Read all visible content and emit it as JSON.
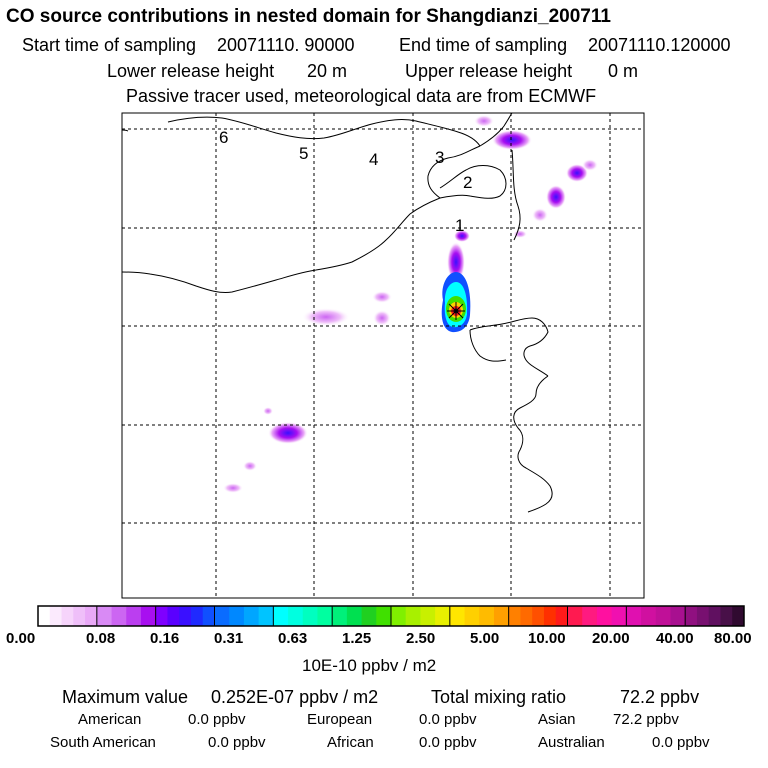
{
  "header": {
    "title": "CO  source contributions in nested domain for Shangdianzi_200711",
    "start_label": "Start time of sampling",
    "start_value": "20071110. 90000",
    "end_label": "End time of sampling",
    "end_value": "20071110.120000",
    "lower_label": "Lower release height",
    "lower_value": "20 m",
    "upper_label": "Upper release height",
    "upper_value": "0 m",
    "note": "Passive tracer used, meteorological data are from ECMWF"
  },
  "map": {
    "region_labels": [
      "1",
      "2",
      "3",
      "4",
      "5",
      "6"
    ],
    "colors": {
      "coast": "#000000",
      "grid": "#000000",
      "plume_high": "#1a1aff",
      "plume_mid": "#00e5d0",
      "plume_low": "#c77dff",
      "source": "#ff2a2a"
    }
  },
  "colorbar": {
    "ticks": [
      "0.00",
      "0.08",
      "0.16",
      "0.31",
      "0.63",
      "1.25",
      "2.50",
      "5.00",
      "10.00",
      "20.00",
      "40.00",
      "80.00"
    ],
    "unit": "10E-10 ppbv / m2",
    "colors": [
      [
        "#ffffff",
        "#fbeafd",
        "#f6d4fb",
        "#efbff9",
        "#e9a9f7"
      ],
      [
        "#d98af5",
        "#cc66f2",
        "#bb3ef0",
        "#a80ff0"
      ],
      [
        "#7f00ff",
        "#5a00ff",
        "#3a10ff",
        "#1f2aff",
        "#1050ff"
      ],
      [
        "#0a6cff",
        "#0088ff",
        "#00a6ff",
        "#00c4ff"
      ],
      [
        "#00ffff",
        "#00ffe0",
        "#00ffc0",
        "#00ffa0"
      ],
      [
        "#00f07a",
        "#00e050",
        "#20d020",
        "#40e000"
      ],
      [
        "#80f000",
        "#a8f000",
        "#c8f000",
        "#e8f000"
      ],
      [
        "#ffe600",
        "#ffd000",
        "#ffbb00",
        "#ffa000"
      ],
      [
        "#ff8000",
        "#ff6a00",
        "#ff5000",
        "#ff3000",
        "#ff1a1a"
      ],
      [
        "#ff1a50",
        "#ff1a80",
        "#ff10a0",
        "#f010b0"
      ],
      [
        "#e010b0",
        "#d010a0",
        "#c01098",
        "#a81090"
      ],
      [
        "#901080",
        "#781070",
        "#601060",
        "#481048",
        "#300a30"
      ]
    ]
  },
  "summary": {
    "max_label": "Maximum value",
    "max_value": "0.252E-07 ppbv / m2",
    "total_label": "Total mixing ratio",
    "total_value": "72.2 ppbv",
    "regions": [
      {
        "name": "American",
        "value": "0.0 ppbv"
      },
      {
        "name": "European",
        "value": "0.0 ppbv"
      },
      {
        "name": "Asian",
        "value": "72.2 ppbv"
      },
      {
        "name": "South American",
        "value": "0.0 ppbv"
      },
      {
        "name": "African",
        "value": "0.0 ppbv"
      },
      {
        "name": "Australian",
        "value": "0.0 ppbv"
      }
    ]
  }
}
